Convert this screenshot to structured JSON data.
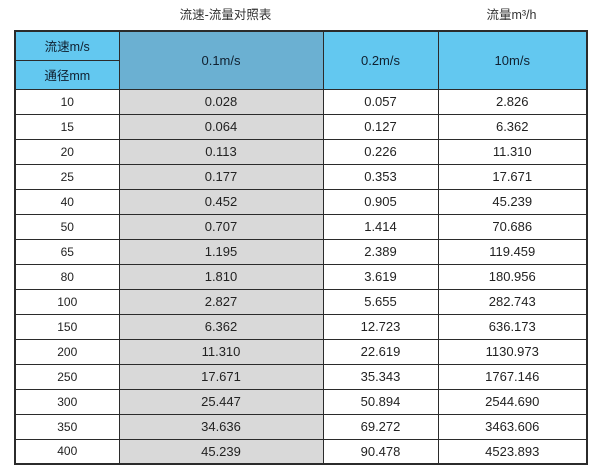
{
  "header": {
    "title": "流速-流量对照表",
    "unit_title": "流量m³/h"
  },
  "colors": {
    "header_blue": "#63c8f0",
    "header_blue_dark": "#6bb0d2",
    "col_gray": "#d9d9d9",
    "border_dark": "#2b2b2b"
  },
  "chart_data": {
    "type": "table",
    "title": "流速-流量对照表",
    "unit_label": "流量m³/h",
    "corner_top_label": "流速m/s",
    "corner_bottom_label": "通径mm",
    "velocity_columns": [
      "0.1m/s",
      "0.2m/s",
      "10m/s"
    ],
    "rows": [
      {
        "dn": "10",
        "values": [
          "0.028",
          "0.057",
          "2.826"
        ]
      },
      {
        "dn": "15",
        "values": [
          "0.064",
          "0.127",
          "6.362"
        ]
      },
      {
        "dn": "20",
        "values": [
          "0.113",
          "0.226",
          "11.310"
        ]
      },
      {
        "dn": "25",
        "values": [
          "0.177",
          "0.353",
          "17.671"
        ]
      },
      {
        "dn": "40",
        "values": [
          "0.452",
          "0.905",
          "45.239"
        ]
      },
      {
        "dn": "50",
        "values": [
          "0.707",
          "1.414",
          "70.686"
        ]
      },
      {
        "dn": "65",
        "values": [
          "1.195",
          "2.389",
          "119.459"
        ]
      },
      {
        "dn": "80",
        "values": [
          "1.810",
          "3.619",
          "180.956"
        ]
      },
      {
        "dn": "100",
        "values": [
          "2.827",
          "5.655",
          "282.743"
        ]
      },
      {
        "dn": "150",
        "values": [
          "6.362",
          "12.723",
          "636.173"
        ]
      },
      {
        "dn": "200",
        "values": [
          "11.310",
          "22.619",
          "1130.973"
        ]
      },
      {
        "dn": "250",
        "values": [
          "17.671",
          "35.343",
          "1767.146"
        ]
      },
      {
        "dn": "300",
        "values": [
          "25.447",
          "50.894",
          "2544.690"
        ]
      },
      {
        "dn": "350",
        "values": [
          "34.636",
          "69.272",
          "3463.606"
        ]
      },
      {
        "dn": "400",
        "values": [
          "45.239",
          "90.478",
          "4523.893"
        ]
      }
    ]
  }
}
